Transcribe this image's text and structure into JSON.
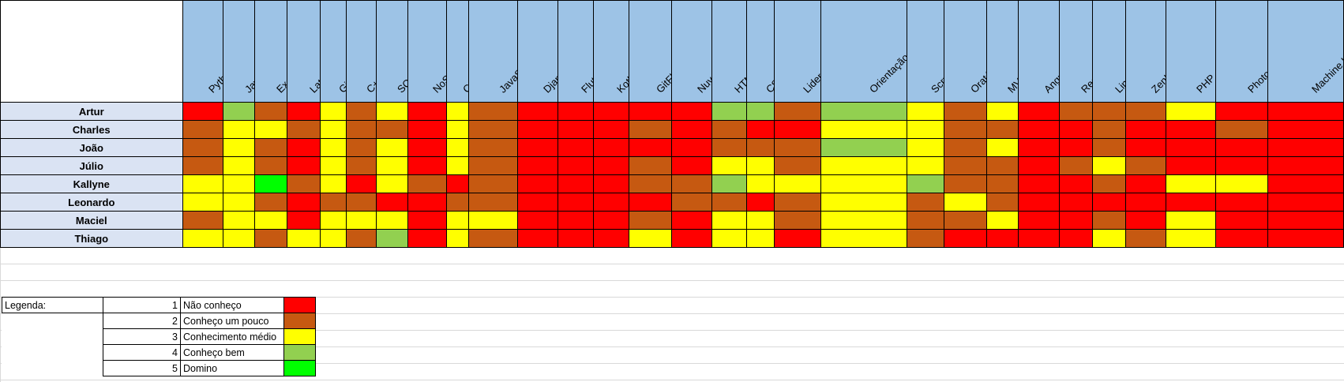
{
  "skills": [
    "Python",
    "Java",
    "Excel",
    "Latex",
    "Git",
    "C++",
    "SQL",
    "NoSQL",
    "C",
    "JavaScript",
    "Django",
    "Flutter",
    "Kotlin",
    "GitFlow",
    "Nuvem",
    "HTML",
    "CSS",
    "Liderança",
    "Orientação à Objetos",
    "Scrum",
    "Oratória",
    "MVC",
    "Angular",
    "React",
    "Linux",
    "ZenHub",
    "PHP",
    "Photoshop",
    "Machine Learning"
  ],
  "people": [
    {
      "name": "Artur",
      "levels": [
        "1",
        "4",
        "2",
        "1",
        "3",
        "2",
        "3",
        "1",
        "3",
        "2",
        "1",
        "1",
        "1",
        "1",
        "1",
        "4",
        "4",
        "2",
        "4",
        "3",
        "2",
        "3",
        "1",
        "2",
        "2",
        "2",
        "3",
        "1",
        "1"
      ]
    },
    {
      "name": "Charles",
      "levels": [
        "2",
        "3",
        "3",
        "2",
        "3",
        "2",
        "2",
        "1",
        "3",
        "2",
        "1",
        "1",
        "1",
        "2",
        "1",
        "2",
        "1",
        "1",
        "3",
        "3",
        "2",
        "2",
        "1",
        "1",
        "2",
        "1",
        "1",
        "2",
        "1"
      ]
    },
    {
      "name": "João",
      "levels": [
        "2",
        "3",
        "2",
        "1",
        "3",
        "2",
        "3",
        "1",
        "3",
        "2",
        "1",
        "1",
        "1",
        "1",
        "1",
        "2",
        "2",
        "2",
        "4",
        "3",
        "2",
        "3",
        "1",
        "1",
        "2",
        "1",
        "1",
        "1",
        "1"
      ]
    },
    {
      "name": "Júlio",
      "levels": [
        "2",
        "3",
        "2",
        "1",
        "3",
        "2",
        "3",
        "1",
        "3",
        "2",
        "1",
        "1",
        "1",
        "2",
        "1",
        "3",
        "3",
        "2",
        "3",
        "3",
        "2",
        "2",
        "1",
        "2",
        "3",
        "2",
        "1",
        "1",
        "1"
      ]
    },
    {
      "name": "Kallyne",
      "levels": [
        "3",
        "3",
        "5",
        "2",
        "3",
        "1",
        "3",
        "2",
        "1",
        "2",
        "1",
        "1",
        "1",
        "2",
        "2",
        "4",
        "3",
        "3",
        "3",
        "4",
        "2",
        "2",
        "1",
        "1",
        "2",
        "1",
        "3",
        "3",
        "1"
      ]
    },
    {
      "name": "Leonardo",
      "levels": [
        "3",
        "3",
        "2",
        "1",
        "2",
        "2",
        "1",
        "1",
        "2",
        "2",
        "1",
        "1",
        "1",
        "1",
        "2",
        "2",
        "1",
        "2",
        "3",
        "2",
        "3",
        "2",
        "1",
        "1",
        "1",
        "1",
        "1",
        "1",
        "1"
      ]
    },
    {
      "name": "Maciel",
      "levels": [
        "2",
        "3",
        "3",
        "1",
        "3",
        "3",
        "3",
        "1",
        "3",
        "3",
        "1",
        "1",
        "1",
        "2",
        "1",
        "3",
        "3",
        "2",
        "3",
        "2",
        "2",
        "3",
        "1",
        "1",
        "2",
        "1",
        "3",
        "1",
        "1"
      ]
    },
    {
      "name": "Thiago",
      "levels": [
        "3",
        "3",
        "2",
        "3",
        "3",
        "2",
        "4",
        "1",
        "3",
        "2",
        "1",
        "1",
        "1",
        "3",
        "1",
        "3",
        "3",
        "1",
        "3",
        "2",
        "1",
        "1",
        "1",
        "1",
        "3",
        "2",
        "3",
        "1",
        "1"
      ]
    }
  ],
  "level_colors": {
    "1": "#ff0000",
    "2": "#c65911",
    "3": "#ffff00",
    "4": "#92d050",
    "5": "#00ff00"
  },
  "legend": {
    "title": "Legenda:",
    "entries": [
      {
        "num": "1",
        "label": "Não conheço",
        "color": "#ff0000"
      },
      {
        "num": "2",
        "label": "Conheço um pouco",
        "color": "#c65911"
      },
      {
        "num": "3",
        "label": "Conhecimento médio",
        "color": "#ffff00"
      },
      {
        "num": "4",
        "label": "Conheço bem",
        "color": "#92d050"
      },
      {
        "num": "5",
        "label": "Domino",
        "color": "#00ff00"
      }
    ]
  }
}
